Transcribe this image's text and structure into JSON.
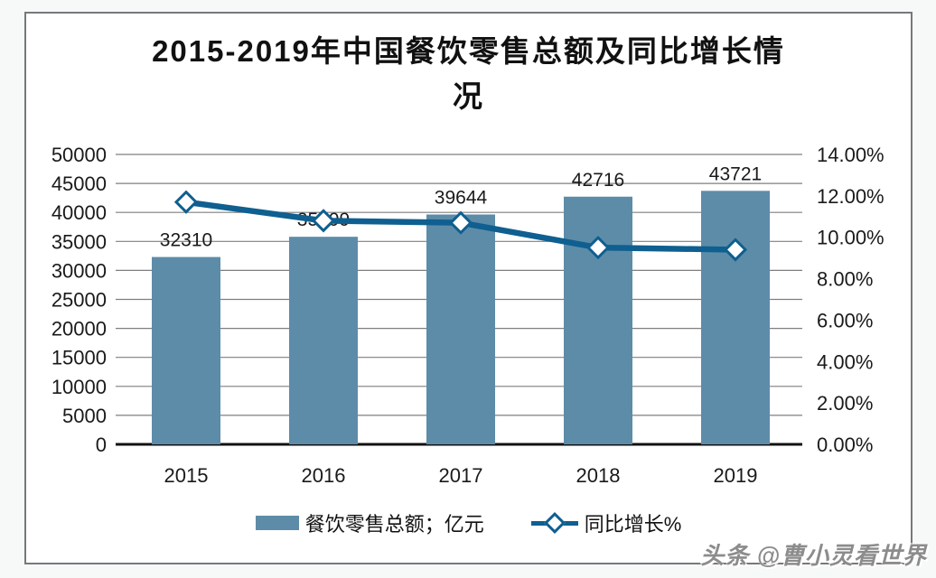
{
  "watermark": "头条 @曹小灵看世界",
  "chart_data": {
    "type": "combo-bar-line",
    "title": "2015-2019年中国餐饮零售总额及同比增长情况",
    "title_lines": [
      "2015-2019年中国餐饮零售总额及同比增长情",
      "况"
    ],
    "categories": [
      "2015",
      "2016",
      "2017",
      "2018",
      "2019"
    ],
    "series": [
      {
        "name": "餐饮零售总额；亿元",
        "type": "bar",
        "axis": "left",
        "values": [
          32310,
          35799,
          39644,
          42716,
          43721
        ],
        "color": "#5d8ca9"
      },
      {
        "name": "同比增长%",
        "type": "line",
        "axis": "right",
        "values": [
          11.7,
          10.8,
          10.7,
          9.5,
          9.4
        ],
        "unit": "%",
        "color": "#0f5f90",
        "marker": "diamond",
        "marker_fill": "#ffffff"
      }
    ],
    "data_labels": [
      "32310",
      "35799",
      "39644",
      "42716",
      "43721"
    ],
    "left_axis": {
      "min": 0,
      "max": 50000,
      "step": 5000,
      "ticks": [
        "0",
        "5000",
        "10000",
        "15000",
        "20000",
        "25000",
        "30000",
        "35000",
        "40000",
        "45000",
        "50000"
      ]
    },
    "right_axis": {
      "min": 0,
      "max": 14,
      "step": 2,
      "ticks": [
        "0.00%",
        "2.00%",
        "4.00%",
        "6.00%",
        "8.00%",
        "10.00%",
        "12.00%",
        "14.00%"
      ]
    },
    "grid": true,
    "grid_color": "#7f7f7f",
    "axis_line_color": "#111111",
    "legend_position": "bottom"
  }
}
